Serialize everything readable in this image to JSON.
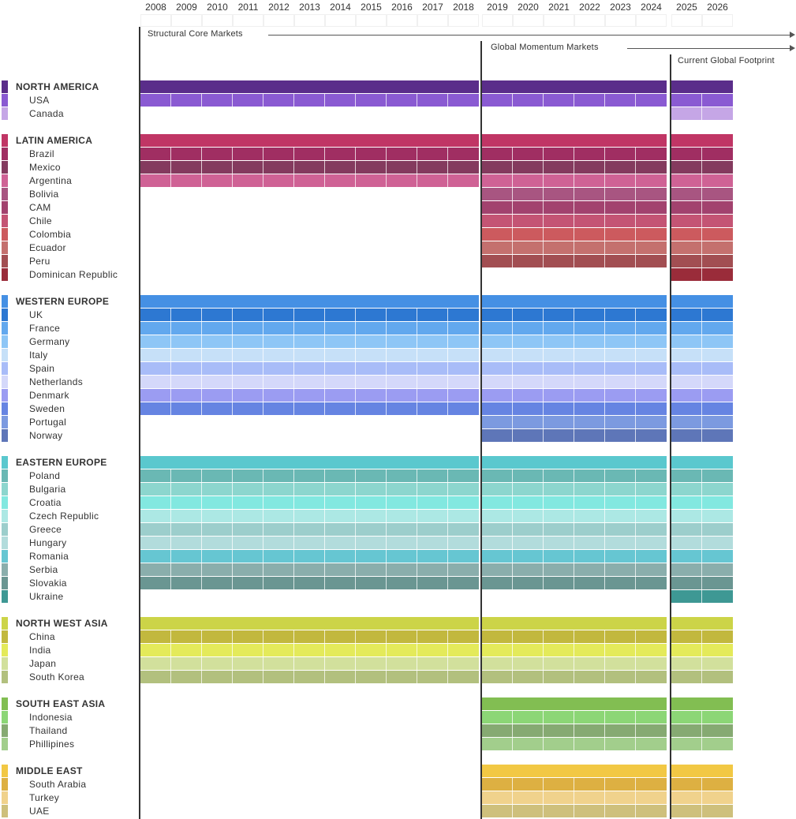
{
  "years": [
    "2008",
    "2009",
    "2010",
    "2011",
    "2012",
    "2013",
    "2014",
    "2015",
    "2016",
    "2017",
    "2018",
    "2019",
    "2020",
    "2021",
    "2022",
    "2023",
    "2024",
    "2025",
    "2026"
  ],
  "phases": [
    {
      "label": "Structural Core Markets"
    },
    {
      "label": "Global Momentum Markets"
    },
    {
      "label": "Current Global Footprint"
    }
  ],
  "groups": [
    {
      "name": "NORTH AMERICA",
      "color": "#5a2d8a",
      "start": "2008",
      "countries": [
        {
          "name": "USA",
          "color": "#8a5ad2",
          "start": "2008"
        },
        {
          "name": "Canada",
          "color": "#c5a6e6",
          "start": "2025"
        }
      ]
    },
    {
      "name": "LATIN AMERICA",
      "color": "#c03565",
      "start": "2008",
      "countries": [
        {
          "name": "Brazil",
          "color": "#a02e62",
          "start": "2008"
        },
        {
          "name": "Mexico",
          "color": "#843a5e",
          "start": "2008"
        },
        {
          "name": "Argentina",
          "color": "#cf6295",
          "start": "2008"
        },
        {
          "name": "Bolivia",
          "color": "#a85581",
          "start": "2019"
        },
        {
          "name": "CAM",
          "color": "#a2426e",
          "start": "2019"
        },
        {
          "name": "Chile",
          "color": "#c45474",
          "start": "2019"
        },
        {
          "name": "Colombia",
          "color": "#cc5a5e",
          "start": "2019"
        },
        {
          "name": "Ecuador",
          "color": "#c4706e",
          "start": "2019"
        },
        {
          "name": "Peru",
          "color": "#a24e52",
          "start": "2019"
        },
        {
          "name": "Dominican Republic",
          "color": "#9a2c3a",
          "start": "2025"
        }
      ]
    },
    {
      "name": "WESTERN EUROPE",
      "color": "#4590e4",
      "start": "2008",
      "countries": [
        {
          "name": "UK",
          "color": "#2d78d2",
          "start": "2008"
        },
        {
          "name": "France",
          "color": "#62a8ee",
          "start": "2008"
        },
        {
          "name": "Germany",
          "color": "#8ec6f6",
          "start": "2008"
        },
        {
          "name": "Italy",
          "color": "#c6e0f8",
          "start": "2008"
        },
        {
          "name": "Spain",
          "color": "#a8bcf8",
          "start": "2008"
        },
        {
          "name": "Netherlands",
          "color": "#d4d8fa",
          "start": "2008"
        },
        {
          "name": "Denmark",
          "color": "#9b9cf2",
          "start": "2008"
        },
        {
          "name": "Sweden",
          "color": "#6684e2",
          "start": "2008"
        },
        {
          "name": "Portugal",
          "color": "#7c9ae0",
          "start": "2019"
        },
        {
          "name": "Norway",
          "color": "#5e76b8",
          "start": "2019"
        }
      ]
    },
    {
      "name": "EASTERN EUROPE",
      "color": "#5ac8ce",
      "start": "2008",
      "countries": [
        {
          "name": "Poland",
          "color": "#6ab8b4",
          "start": "2008"
        },
        {
          "name": "Bulgaria",
          "color": "#8cd6ce",
          "start": "2008"
        },
        {
          "name": "Croatia",
          "color": "#82e8e0",
          "start": "2008"
        },
        {
          "name": "Czech Republic",
          "color": "#ace8e4",
          "start": "2008"
        },
        {
          "name": "Greece",
          "color": "#9ccecc",
          "start": "2008"
        },
        {
          "name": "Hungary",
          "color": "#b2dcdc",
          "start": "2008"
        },
        {
          "name": "Romania",
          "color": "#66c6d2",
          "start": "2008"
        },
        {
          "name": "Serbia",
          "color": "#8aaeac",
          "start": "2008"
        },
        {
          "name": "Slovakia",
          "color": "#6a9692",
          "start": "2008"
        },
        {
          "name": "Ukraine",
          "color": "#3e9894",
          "start": "2025"
        }
      ]
    },
    {
      "name": "NORTH WEST ASIA",
      "color": "#ccd448",
      "start": "2008",
      "countries": [
        {
          "name": "China",
          "color": "#c2b83e",
          "start": "2008"
        },
        {
          "name": "India",
          "color": "#e4ea5a",
          "start": "2008"
        },
        {
          "name": "Japan",
          "color": "#d2e09c",
          "start": "2008"
        },
        {
          "name": "South Korea",
          "color": "#b2c07e",
          "start": "2008"
        }
      ]
    },
    {
      "name": "SOUTH EAST ASIA",
      "color": "#82be52",
      "start": "2019",
      "countries": [
        {
          "name": "Indonesia",
          "color": "#8cd676",
          "start": "2019"
        },
        {
          "name": "Thailand",
          "color": "#86aa72",
          "start": "2019"
        },
        {
          "name": "Phillipines",
          "color": "#a2ce8c",
          "start": "2019"
        }
      ]
    },
    {
      "name": "MIDDLE EAST",
      "color": "#f2c844",
      "start": "2019",
      "countries": [
        {
          "name": "South Arabia",
          "color": "#ddb042",
          "start": "2019"
        },
        {
          "name": "Turkey",
          "color": "#f0d28c",
          "start": "2019"
        },
        {
          "name": "UAE",
          "color": "#cec07c",
          "start": "2019"
        }
      ]
    }
  ]
}
